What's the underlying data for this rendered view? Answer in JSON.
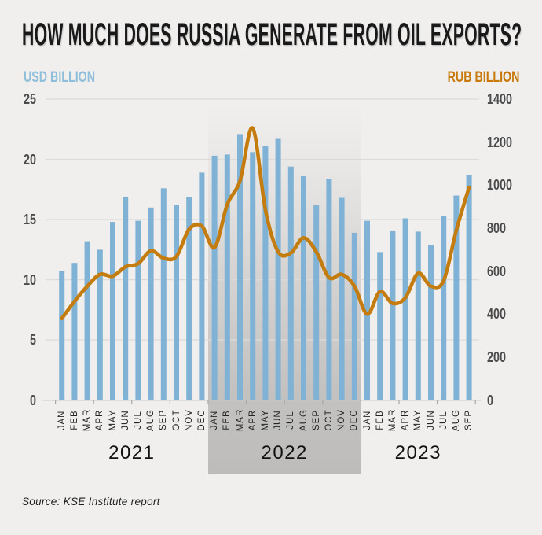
{
  "header": {
    "title": "HOW MUCH DOES RUSSIA GENERATE FROM OIL EXPORTS?"
  },
  "legend": {
    "left_axis_label": "USD BILLION",
    "right_axis_label": "RUB BILLION"
  },
  "footer": {
    "source": "Source: KSE Institute report"
  },
  "style": {
    "background": "#f0efee",
    "bar_color": "#7fb2d4",
    "line_color": "#c47c0e",
    "usd_label_color": "#8fbeda",
    "rub_label_color": "#c8790a",
    "grid_color": "#dcdbd9",
    "axis_line_color": "#c9c8c6",
    "band_gray": "158,157,155"
  },
  "chart_data": {
    "type": "bar",
    "title": "HOW MUCH DOES RUSSIA GENERATE FROM OIL EXPORTS?",
    "categories": [
      "JAN",
      "FEB",
      "MAR",
      "APR",
      "MAY",
      "JUN",
      "JUL",
      "AUG",
      "SEP",
      "OCT",
      "NOV",
      "DEC",
      "JAN",
      "FEB",
      "MAR",
      "APR",
      "MAY",
      "JUN",
      "JUL",
      "AUG",
      "SEP",
      "OCT",
      "NOV",
      "DEC",
      "JAN",
      "FEB",
      "MAR",
      "APR",
      "MAY",
      "JUN",
      "JUL",
      "AUG",
      "SEP"
    ],
    "year_groups": [
      {
        "label": "2021",
        "count": 12,
        "highlighted": false
      },
      {
        "label": "2022",
        "count": 12,
        "highlighted": true
      },
      {
        "label": "2023",
        "count": 9,
        "highlighted": false
      }
    ],
    "series": [
      {
        "name": "USD BILLION",
        "type": "bar",
        "axis": "left",
        "values": [
          10.7,
          11.4,
          13.2,
          12.5,
          14.8,
          16.9,
          14.9,
          16.0,
          17.6,
          16.2,
          16.9,
          18.9,
          20.3,
          20.4,
          22.1,
          20.6,
          21.1,
          21.7,
          19.4,
          18.6,
          16.2,
          18.4,
          16.8,
          13.9,
          14.9,
          12.3,
          14.1,
          15.1,
          14.0,
          12.9,
          15.3,
          17.0,
          18.7
        ]
      },
      {
        "name": "RUB BILLION",
        "type": "line",
        "axis": "right",
        "values": [
          380,
          460,
          530,
          585,
          577,
          620,
          635,
          695,
          660,
          668,
          795,
          810,
          710,
          910,
          1020,
          1265,
          885,
          690,
          685,
          755,
          690,
          570,
          585,
          530,
          400,
          505,
          450,
          477,
          590,
          530,
          555,
          790,
          990
        ]
      }
    ],
    "left_axis": {
      "label": "USD BILLION",
      "ticks": [
        0,
        5,
        10,
        15,
        20,
        25
      ],
      "range": [
        0,
        25
      ]
    },
    "right_axis": {
      "label": "RUB BILLION",
      "ticks": [
        0,
        200,
        400,
        600,
        800,
        1000,
        1200,
        1400
      ],
      "range": [
        0,
        1400
      ]
    },
    "highlight_region": {
      "year": "2022",
      "style": "gray-gradient"
    },
    "grid": true,
    "legend_position": "top"
  }
}
